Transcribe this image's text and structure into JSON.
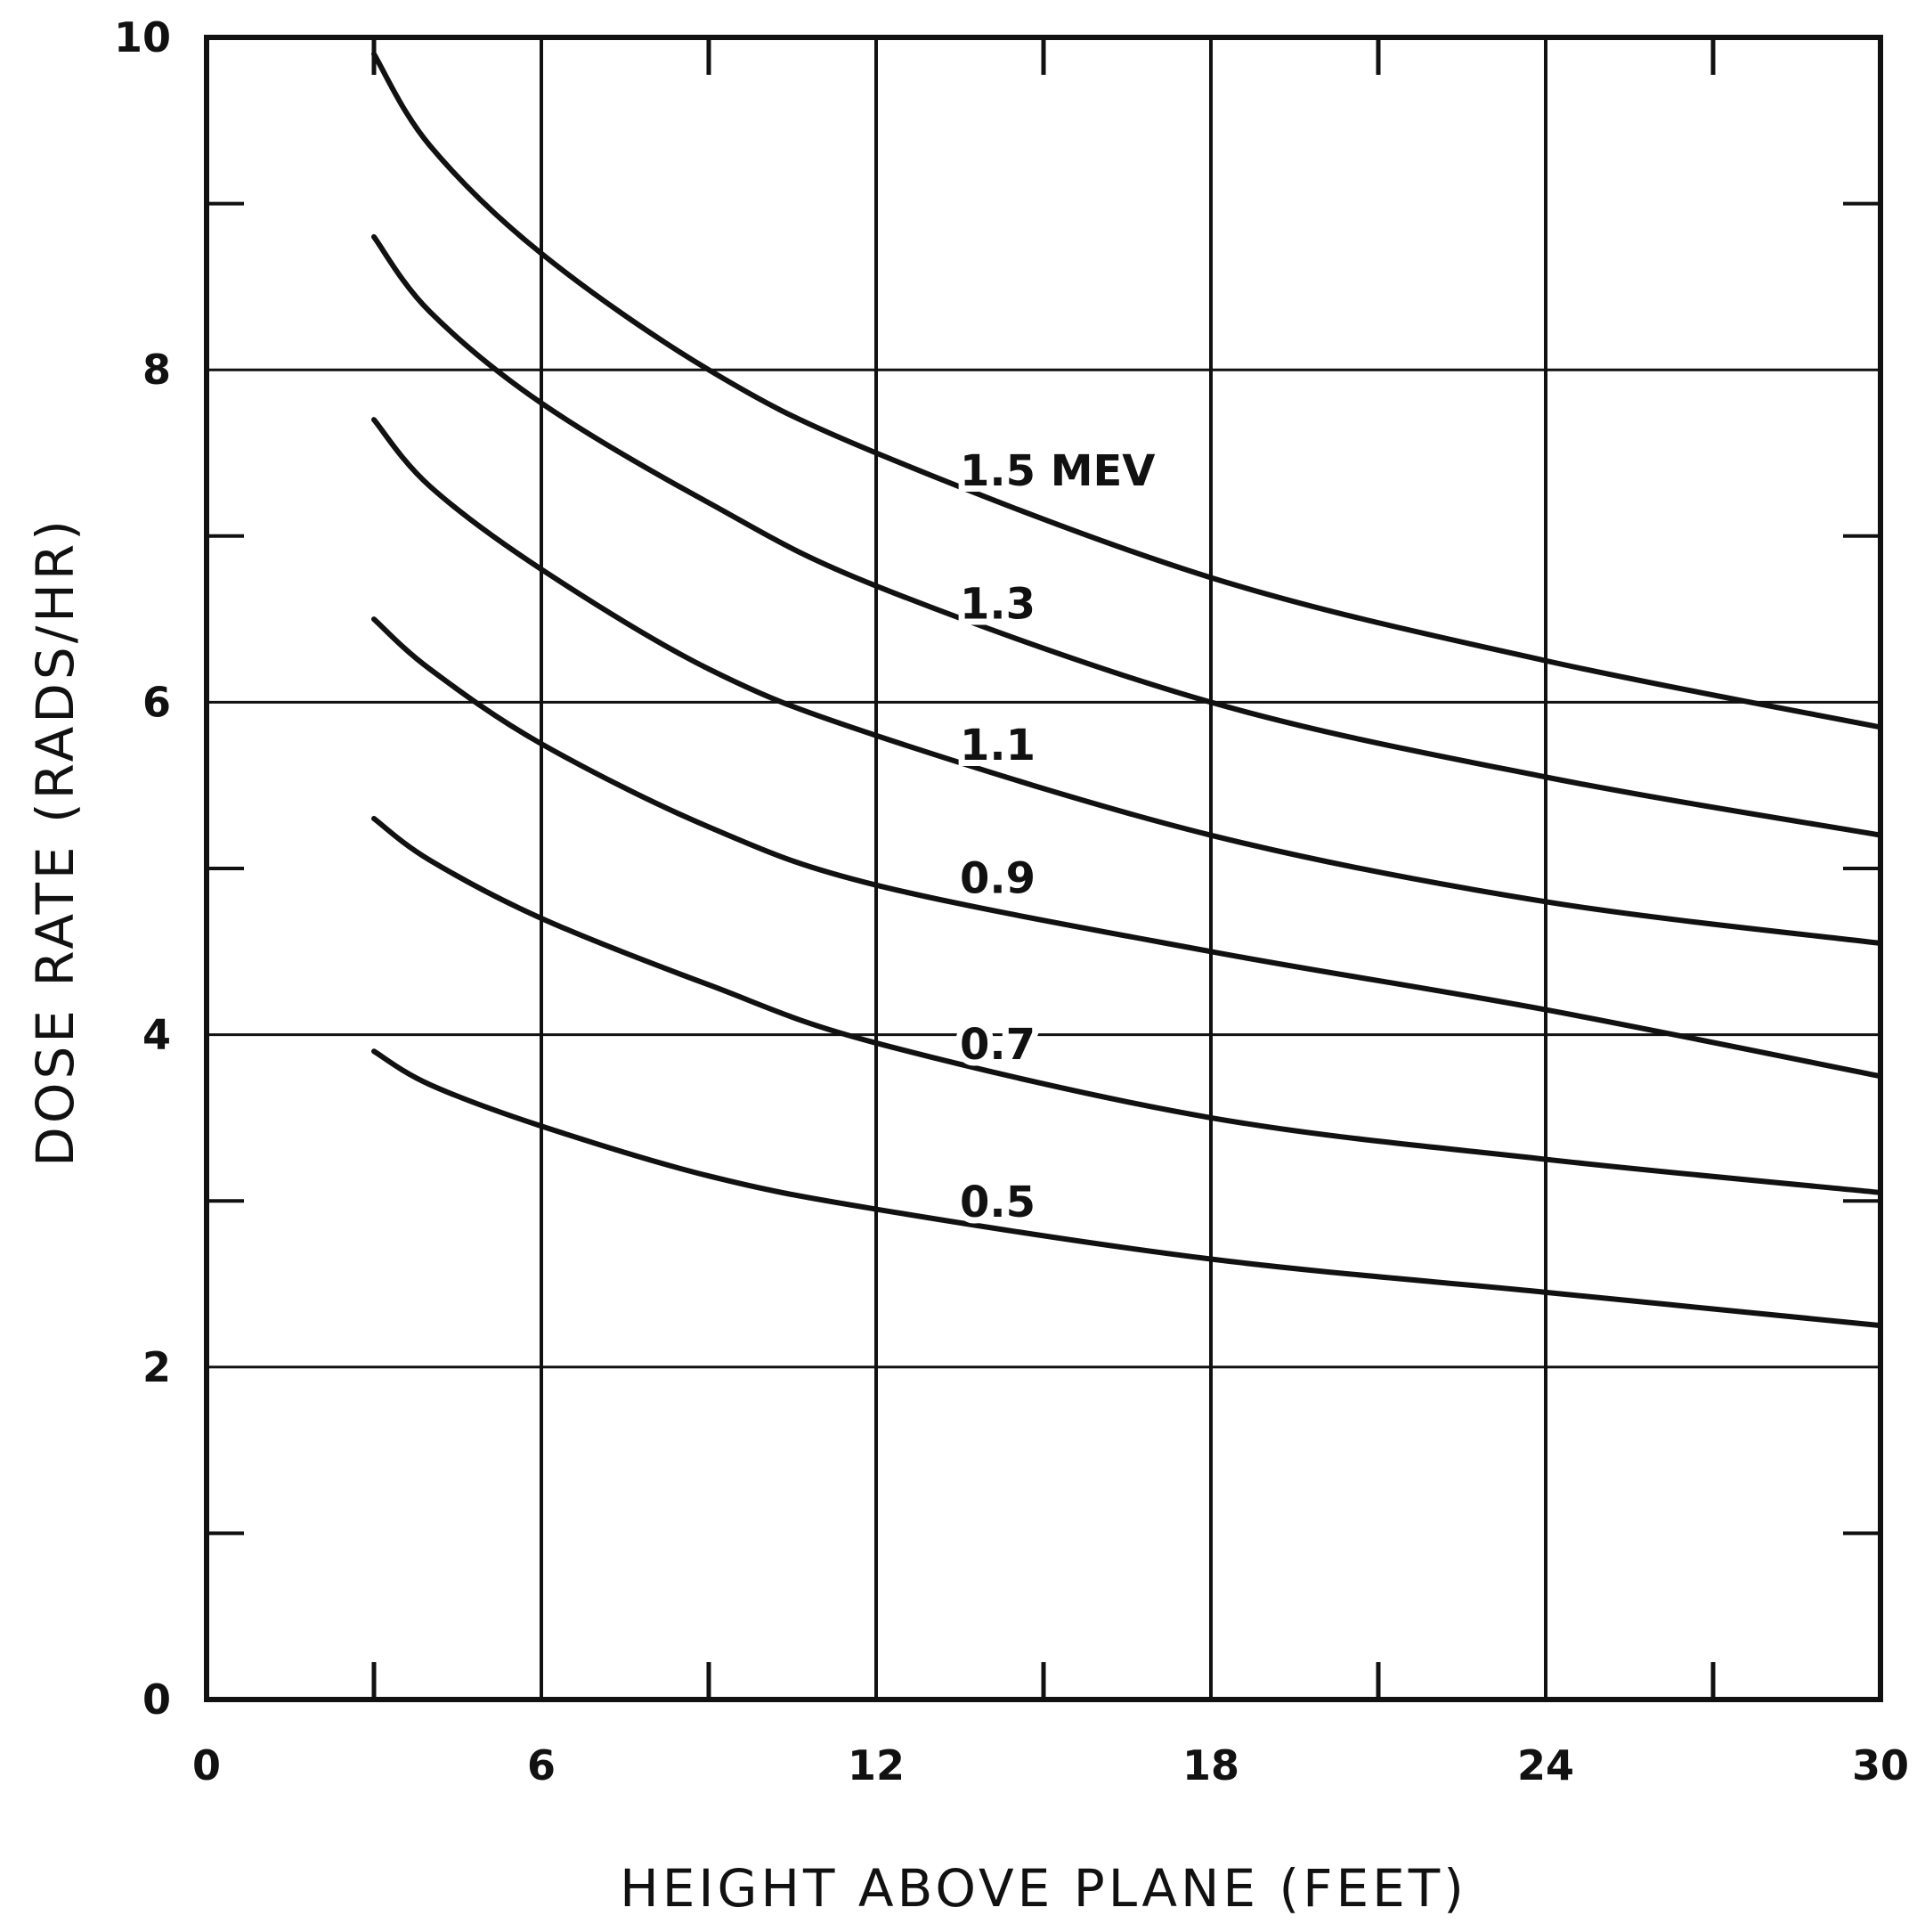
{
  "chart_data": {
    "type": "line",
    "title": "",
    "xlabel": "HEIGHT ABOVE PLANE (FEET)",
    "ylabel": "DOSE RATE (RADS/HR)",
    "xlim": [
      0,
      30
    ],
    "ylim": [
      0,
      10
    ],
    "x_ticks": [
      0,
      6,
      12,
      18,
      24,
      30
    ],
    "x_tick_labels": [
      "0",
      "6",
      "12",
      "18",
      "24",
      "30"
    ],
    "x_minor_ticks": [
      3,
      9,
      15,
      21,
      27
    ],
    "y_ticks": [
      0,
      2,
      4,
      6,
      8,
      10
    ],
    "y_tick_labels": [
      "0",
      "2",
      "4",
      "6",
      "8",
      "10"
    ],
    "y_minor_ticks": [
      1,
      3,
      5,
      7,
      9
    ],
    "grid": true,
    "line_color": "#111111",
    "series": [
      {
        "name": "1.5 MEV",
        "x": [
          3,
          4,
          6,
          9,
          12,
          18,
          24,
          30
        ],
        "values": [
          9.9,
          9.35,
          8.7,
          8.0,
          7.5,
          6.75,
          6.25,
          5.85
        ],
        "label_at": [
          13.5,
          7.4
        ]
      },
      {
        "name": "1.3",
        "x": [
          3,
          4,
          6,
          9,
          12,
          18,
          24,
          30
        ],
        "values": [
          8.8,
          8.35,
          7.8,
          7.2,
          6.7,
          6.0,
          5.55,
          5.2
        ],
        "label_at": [
          13.5,
          6.6
        ]
      },
      {
        "name": "1.1",
        "x": [
          3,
          4,
          6,
          9,
          12,
          18,
          24,
          30
        ],
        "values": [
          7.7,
          7.3,
          6.8,
          6.2,
          5.8,
          5.2,
          4.8,
          4.55
        ],
        "label_at": [
          13.5,
          5.75
        ]
      },
      {
        "name": "0.9",
        "x": [
          3,
          4,
          6,
          9,
          12,
          18,
          24,
          30
        ],
        "values": [
          6.5,
          6.2,
          5.75,
          5.25,
          4.9,
          4.5,
          4.15,
          3.75
        ],
        "label_at": [
          13.5,
          4.95
        ]
      },
      {
        "name": "0.7",
        "x": [
          3,
          4,
          6,
          9,
          12,
          18,
          24,
          30
        ],
        "values": [
          5.3,
          5.05,
          4.7,
          4.3,
          3.95,
          3.5,
          3.25,
          3.05
        ],
        "label_at": [
          13.5,
          3.95
        ]
      },
      {
        "name": "0.5",
        "x": [
          3,
          4,
          6,
          9,
          12,
          18,
          24,
          30
        ],
        "values": [
          3.9,
          3.7,
          3.45,
          3.15,
          2.95,
          2.65,
          2.45,
          2.25
        ],
        "label_at": [
          13.5,
          3.0
        ]
      }
    ]
  }
}
